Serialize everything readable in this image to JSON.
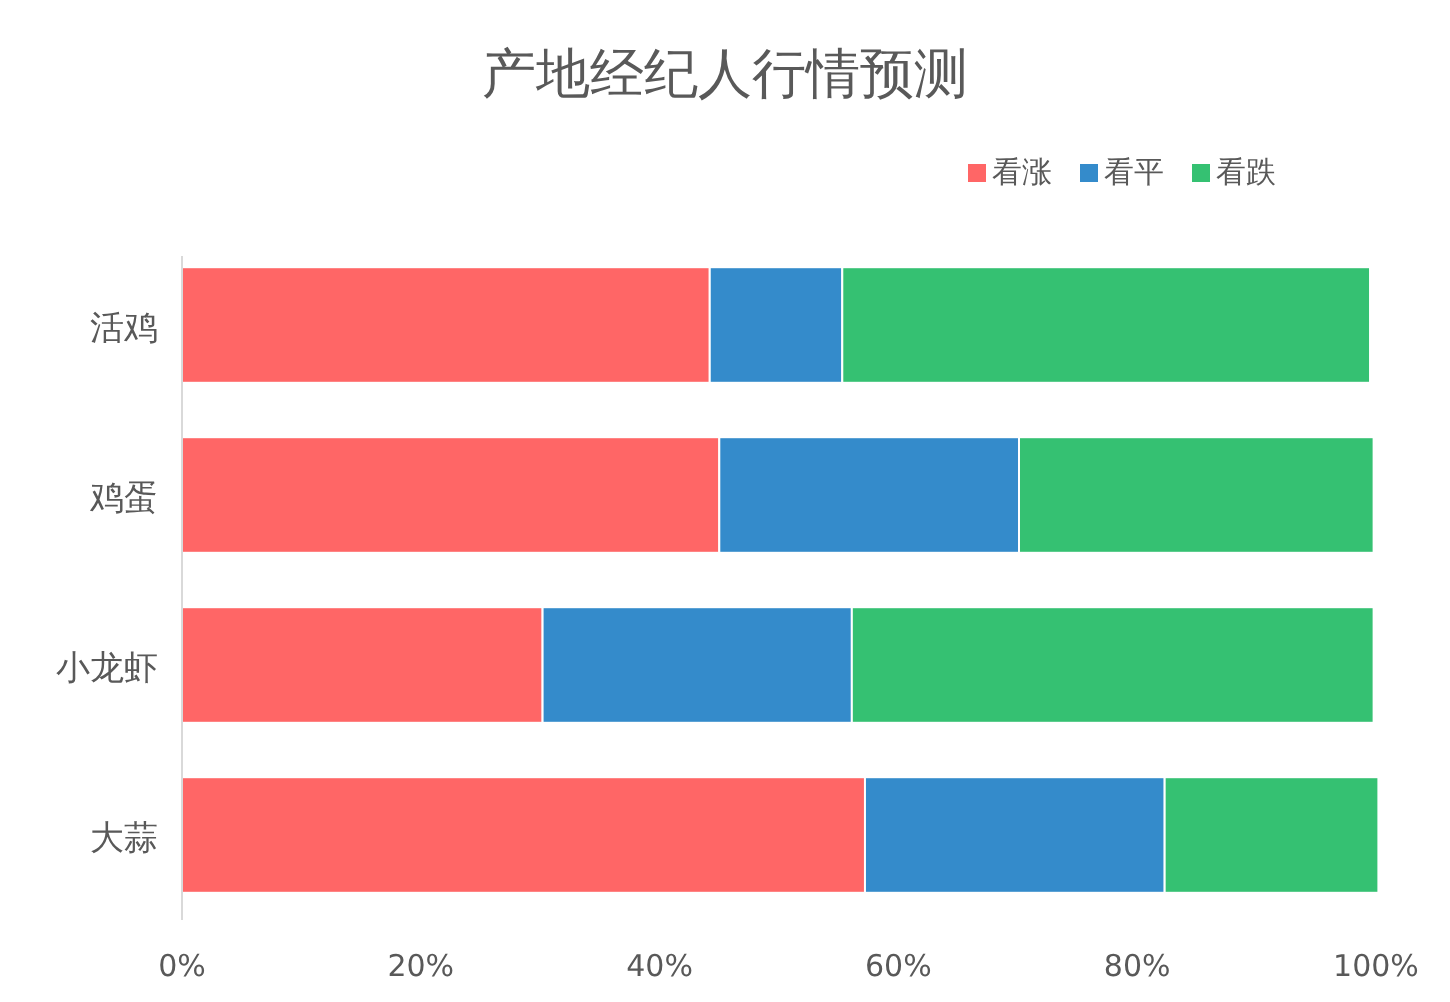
{
  "chart_data": {
    "type": "bar",
    "orientation": "horizontal",
    "stacked": true,
    "title": "产地经纪人行情预测",
    "categories": [
      "活鸡",
      "鸡蛋",
      "小龙虾",
      "大蒜"
    ],
    "series": [
      {
        "name": "看涨",
        "color": "#ff6666",
        "values": [
          44.2,
          45.0,
          30.2,
          57.2
        ]
      },
      {
        "name": "看平",
        "color": "#348bcb",
        "values": [
          11.1,
          25.1,
          25.9,
          25.1
        ]
      },
      {
        "name": "看跌",
        "color": "#35c172",
        "values": [
          44.2,
          29.7,
          43.7,
          17.9
        ]
      }
    ],
    "xlim": [
      0,
      100
    ],
    "xticks": [
      {
        "value": 0,
        "label": "0%"
      },
      {
        "value": 20,
        "label": "20%"
      },
      {
        "value": 40,
        "label": "40%"
      },
      {
        "value": 60,
        "label": "60%"
      },
      {
        "value": 80,
        "label": "80%"
      },
      {
        "value": 100,
        "label": "100%"
      }
    ],
    "legend": "top right",
    "grid": false
  }
}
